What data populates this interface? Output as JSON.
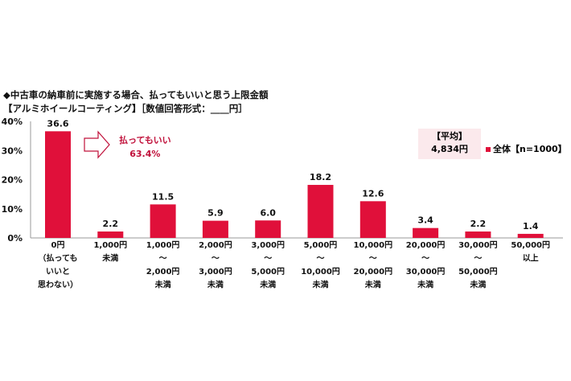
{
  "chart_data": {
    "type": "bar",
    "title": "◆中古車の納車前に実施する場合、払ってもいいと思う上限金額",
    "subtitle": "【アルミホイールコーティング】［数値回答形式：____円］",
    "categories": [
      [
        "0円",
        "（払っても",
        "いいと",
        "思わない）"
      ],
      [
        "1,000円",
        "未満"
      ],
      [
        "1,000円",
        "～",
        "2,000円",
        "未満"
      ],
      [
        "2,000円",
        "～",
        "3,000円",
        "未満"
      ],
      [
        "3,000円",
        "～",
        "5,000円",
        "未満"
      ],
      [
        "5,000円",
        "～",
        "10,000円",
        "未満"
      ],
      [
        "10,000円",
        "～",
        "20,000円",
        "未満"
      ],
      [
        "20,000円",
        "～",
        "30,000円",
        "未満"
      ],
      [
        "30,000円",
        "～",
        "50,000円",
        "未満"
      ],
      [
        "50,000円",
        "以上"
      ]
    ],
    "values": [
      36.6,
      2.2,
      11.5,
      5.9,
      6.0,
      18.2,
      12.6,
      3.4,
      2.2,
      1.4
    ],
    "value_labels": [
      "36.6",
      "2.2",
      "11.5",
      "5.9",
      "6.0",
      "18.2",
      "12.6",
      "3.4",
      "2.2",
      "1.4"
    ],
    "ylim": [
      0,
      40
    ],
    "yticks": [
      "0%",
      "10%",
      "20%",
      "30%",
      "40%"
    ],
    "legend": "全体【n=1000】",
    "legend_position": "top-right",
    "average_label": "【平均】",
    "average_value": "4,834円",
    "callout_label": "払ってもいい",
    "callout_value": "63.4%",
    "bar_color": "#e0103a"
  }
}
